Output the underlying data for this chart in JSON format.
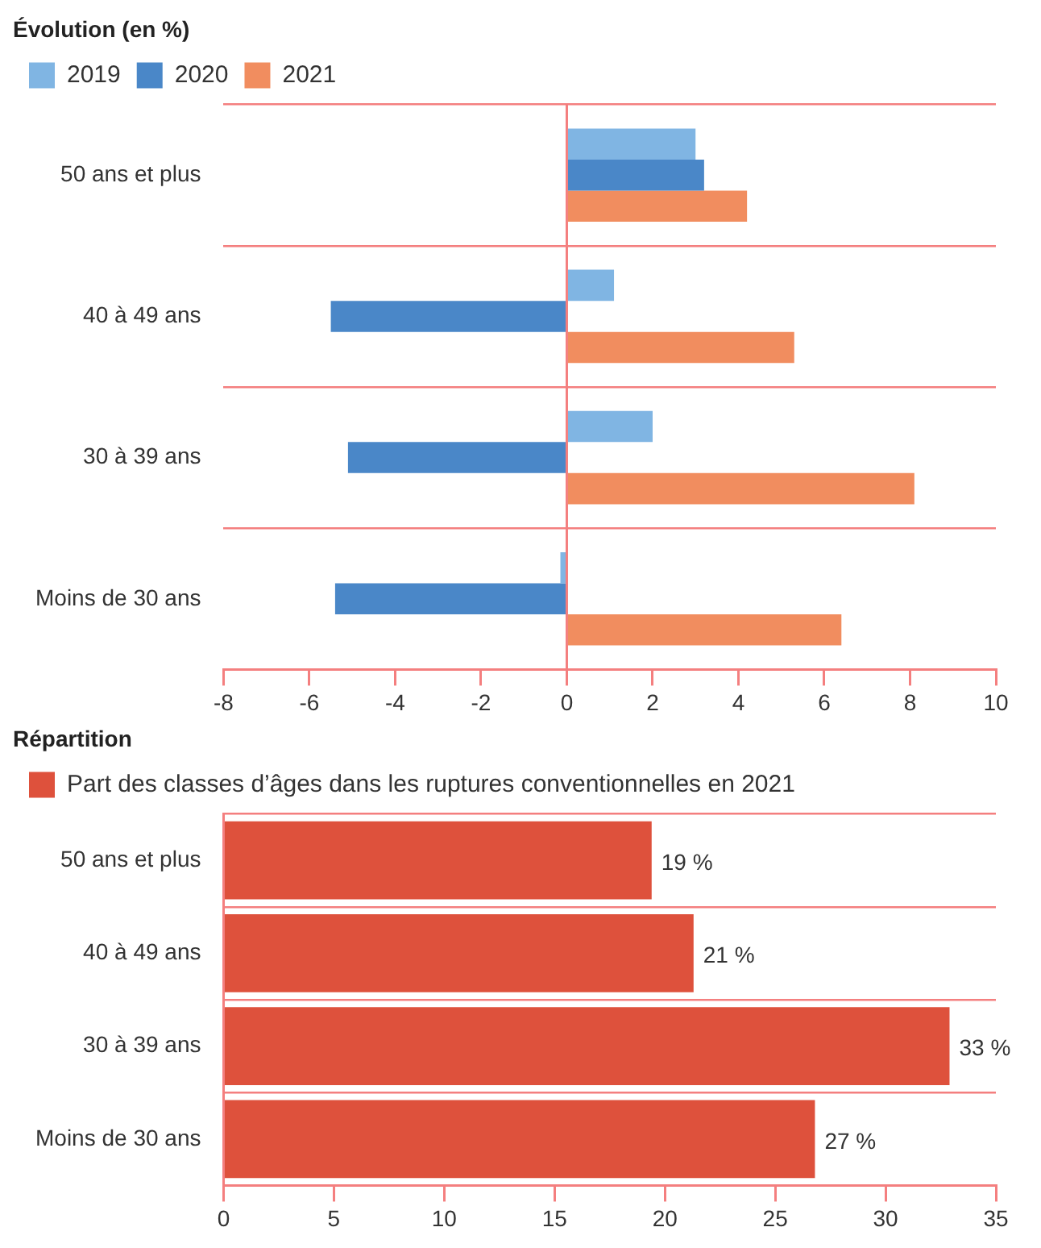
{
  "chart_data": [
    {
      "type": "bar",
      "orientation": "horizontal",
      "legend_title": "Évolution (en %)",
      "legend": "top",
      "grid": "y",
      "categories": [
        "50 ans et plus",
        "40 à 49 ans",
        "30 à 39 ans",
        "Moins de 30 ans"
      ],
      "series": [
        {
          "name": "2019",
          "color": "#80b5e3",
          "values": [
            3.0,
            1.1,
            2.0,
            -0.15
          ]
        },
        {
          "name": "2020",
          "color": "#4a87c8",
          "values": [
            3.2,
            -5.5,
            -5.1,
            -5.4
          ]
        },
        {
          "name": "2021",
          "color": "#f18d5f",
          "values": [
            4.2,
            5.3,
            8.1,
            6.4
          ]
        }
      ],
      "xlim": [
        -8,
        10
      ],
      "xticks": [
        -8,
        -6,
        -4,
        -2,
        0,
        2,
        4,
        6,
        8,
        10
      ],
      "ref_lines": [
        {
          "axis": "x",
          "value": 0,
          "color": "#f47f7f"
        }
      ]
    },
    {
      "type": "bar",
      "orientation": "horizontal",
      "legend_title": "Répartition",
      "legend": "top",
      "grid": "y",
      "categories": [
        "50 ans et plus",
        "40 à 49 ans",
        "30 à 39 ans",
        "Moins de 30 ans"
      ],
      "series": [
        {
          "name": "Part des classes d’âges dans les ruptures conventionnelles en 2021",
          "color": "#de513c",
          "values": [
            19.4,
            21.3,
            32.9,
            26.8
          ],
          "value_labels": [
            "19 %",
            "21 %",
            "33 %",
            "27 %"
          ]
        }
      ],
      "xlim": [
        0,
        35
      ],
      "xticks": [
        0,
        5,
        10,
        15,
        20,
        25,
        30,
        35
      ]
    }
  ]
}
